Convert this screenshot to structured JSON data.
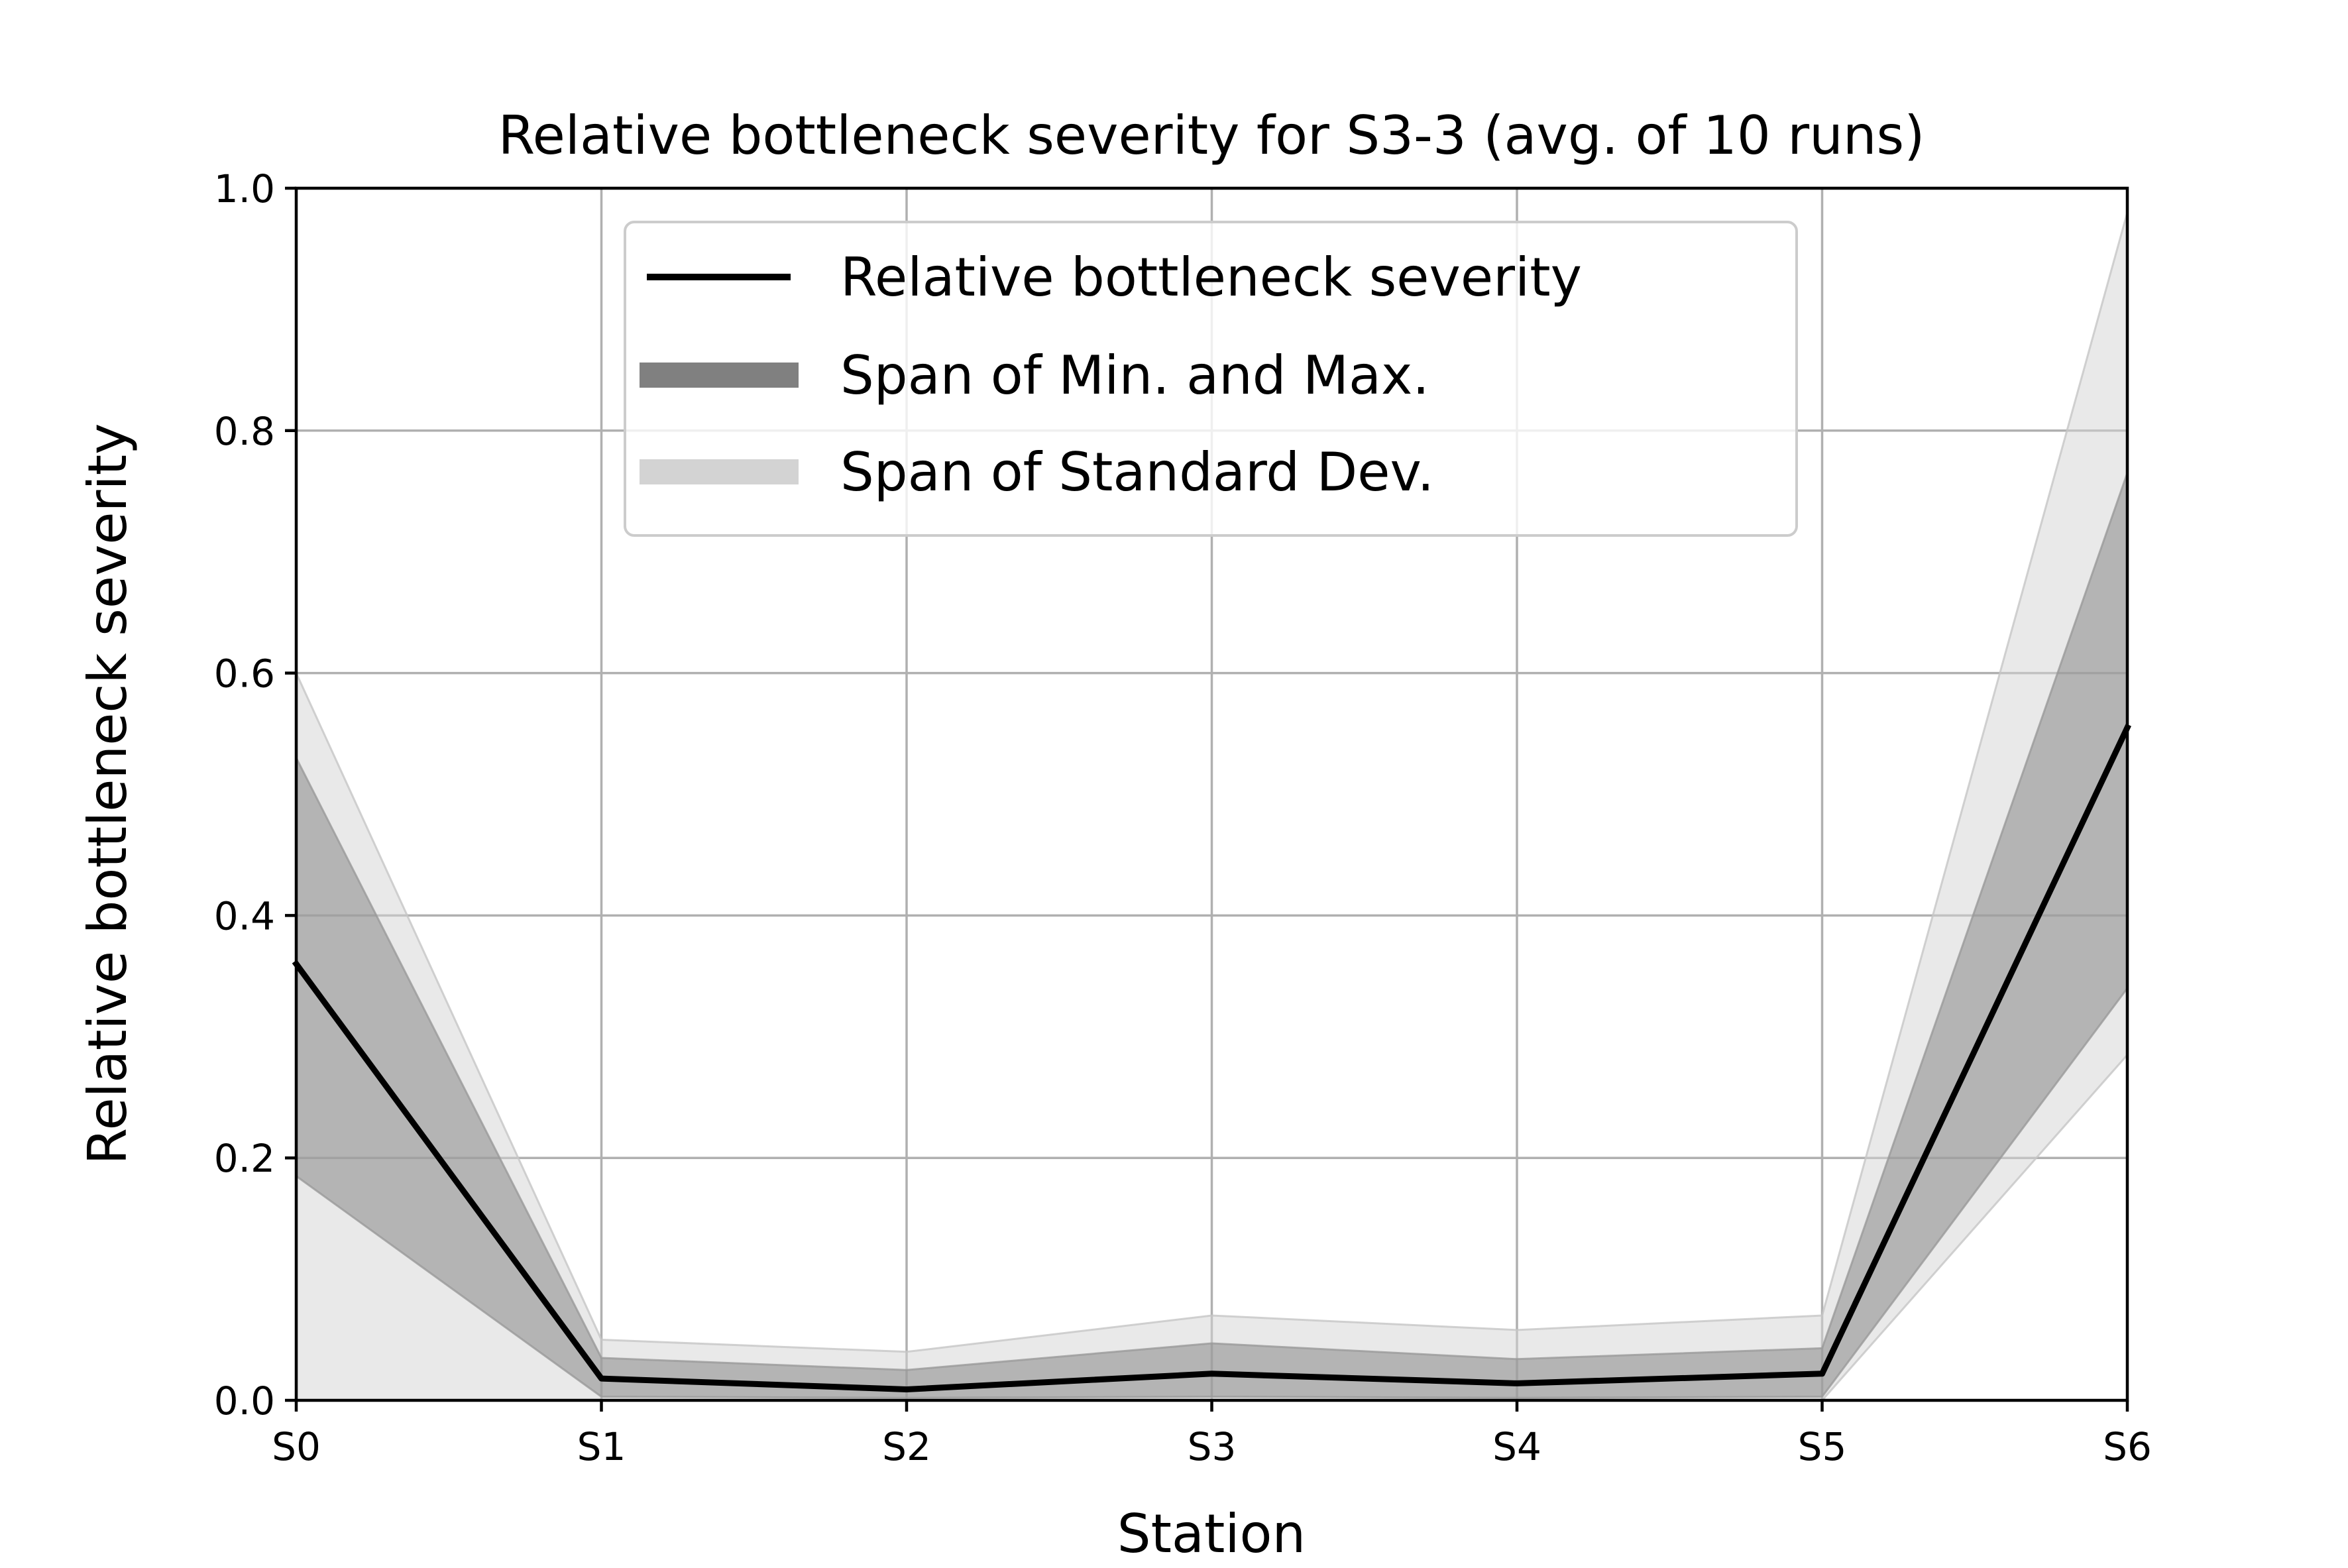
{
  "chart_data": {
    "type": "line",
    "title": "Relative bottleneck severity for S3-3 (avg. of 10 runs)",
    "xlabel": "Station",
    "ylabel": "Relative bottleneck severity",
    "categories": [
      "S0",
      "S1",
      "S2",
      "S3",
      "S4",
      "S5",
      "S6"
    ],
    "ylim": [
      0,
      1.0
    ],
    "yticks": [
      "0.0",
      "0.2",
      "0.4",
      "0.6",
      "0.8",
      "1.0"
    ],
    "grid": true,
    "legend_position": "upper center",
    "series": [
      {
        "name": "Relative bottleneck severity",
        "kind": "line",
        "color": "#000000",
        "values": [
          0.36,
          0.018,
          0.009,
          0.022,
          0.014,
          0.022,
          0.555
        ]
      },
      {
        "name": "Span of Min. and Max.",
        "kind": "band",
        "color": "#808080",
        "lower": [
          0.185,
          0.003,
          0.002,
          0.003,
          0.002,
          0.003,
          0.34
        ],
        "upper": [
          0.53,
          0.035,
          0.025,
          0.047,
          0.034,
          0.043,
          0.765
        ]
      },
      {
        "name": "Span of Standard Dev.",
        "kind": "band",
        "color": "#d3d3d3",
        "lower": [
          0.0,
          0.0,
          0.0,
          0.0,
          0.0,
          0.0,
          0.285
        ],
        "upper": [
          0.6,
          0.05,
          0.04,
          0.07,
          0.058,
          0.07,
          0.98
        ]
      }
    ]
  }
}
